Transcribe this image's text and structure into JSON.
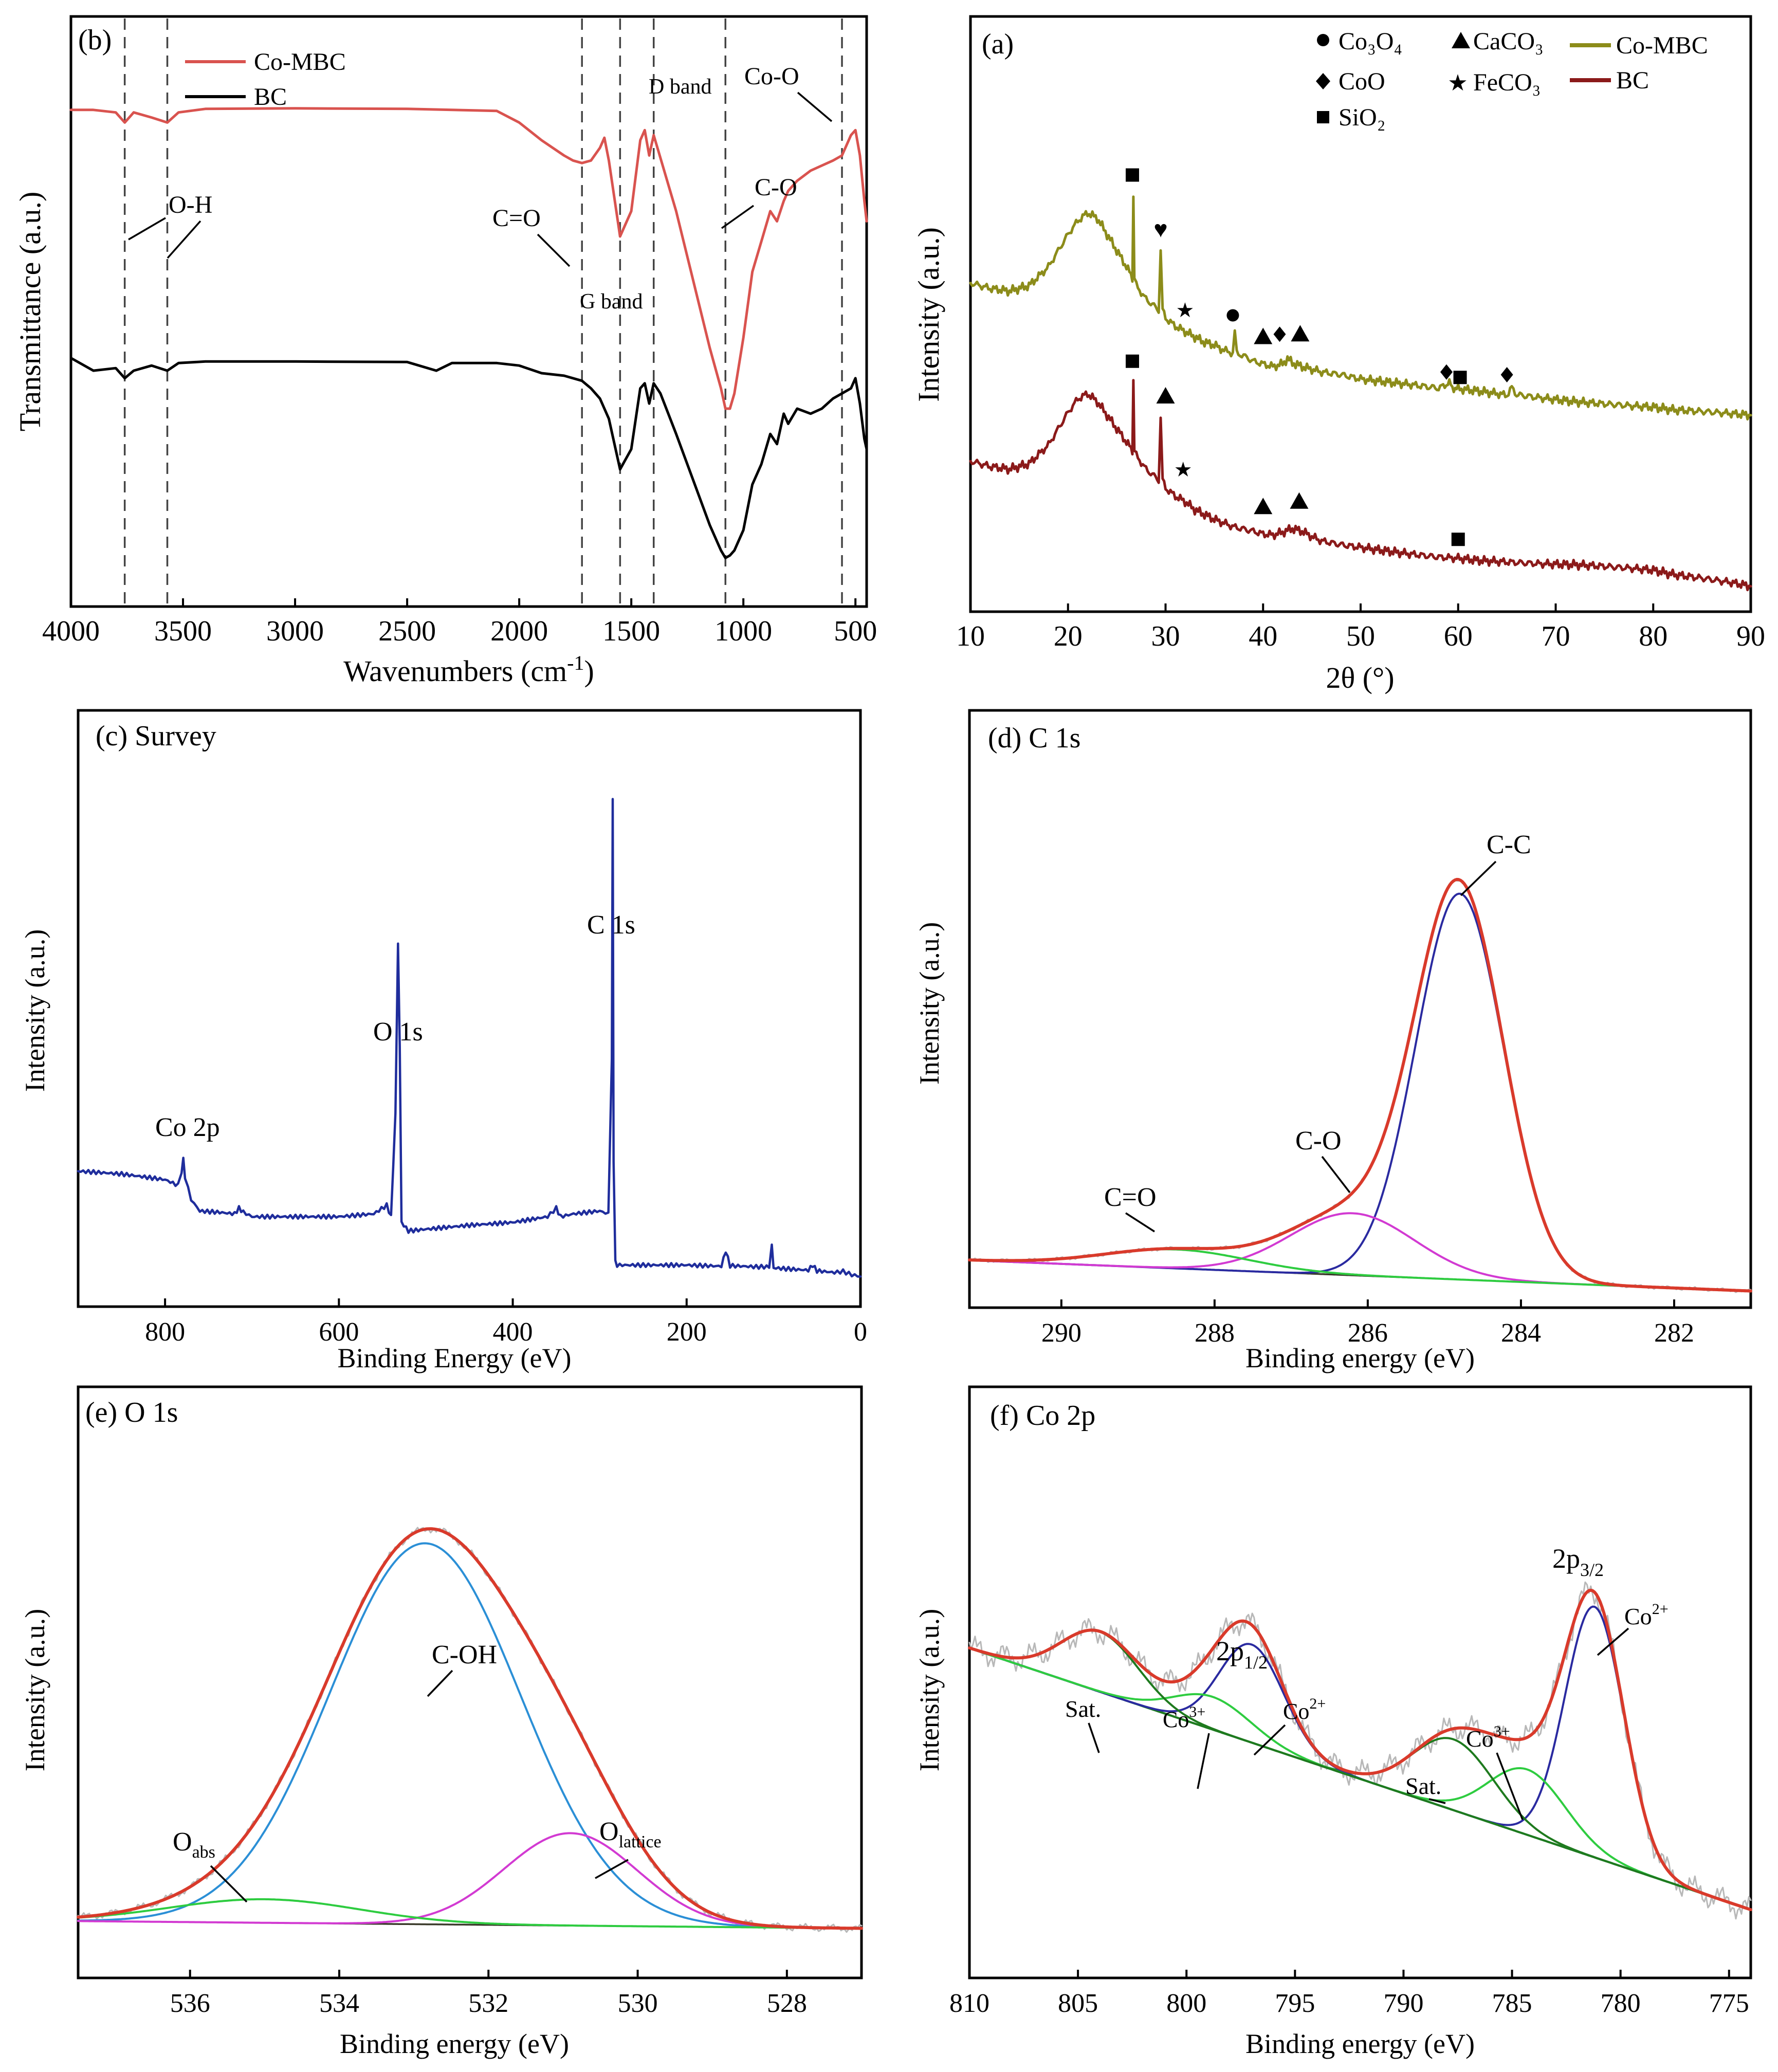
{
  "figure": {
    "description": "Six-panel characterization figure: FTIR (b), XRD (a), XPS survey (c), C 1s (d), O 1s (e), Co 2p (f)"
  },
  "colors": {
    "ftir_co_mbc": "#d9534f",
    "ftir_bc": "#000000",
    "xrd_co_mbc": "#8c8c1a",
    "xrd_bc": "#8b1a1a",
    "survey": "#1f2d9c",
    "envelope": "#d93a2b",
    "raw": "#b8b8b8",
    "background": "#3a3a2a",
    "peak_blue": "#2a2aa0",
    "peak_magenta": "#d23ad2",
    "peak_green": "#2ecc40",
    "peak_cyan": "#2b8fd6",
    "peak_darkgreen": "#1e7a1e"
  },
  "chart_data": [
    {
      "id": "ftir",
      "type": "line",
      "panel_label": "(b)",
      "xlabel": "Wavenumbers (cm",
      "xlabel_sup": "-1",
      "xlabel_tail": ")",
      "ylabel": "Transmittance (a.u.)",
      "xlim": [
        4000,
        450
      ],
      "ylim": [
        0,
        100
      ],
      "xticks": [
        4000,
        3500,
        3000,
        2500,
        2000,
        1500,
        1000,
        500
      ],
      "xtick_labels": [
        "4000",
        "3500",
        "3000",
        "2500",
        "2000",
        "1500",
        "1000",
        "500"
      ],
      "legend": [
        "Co-MBC",
        "BC"
      ],
      "vlines": [
        3760,
        3570,
        1720,
        1550,
        1400,
        1080,
        560
      ],
      "annotations": [
        "O-H",
        "C=O",
        "G band",
        "D band",
        "C-O",
        "Co-O"
      ],
      "series": [
        {
          "name": "Co-MBC",
          "x": [
            4000,
            3900,
            3800,
            3760,
            3720,
            3640,
            3570,
            3520,
            3400,
            3000,
            2500,
            2100,
            2000,
            1900,
            1800,
            1760,
            1720,
            1680,
            1640,
            1620,
            1600,
            1550,
            1500,
            1460,
            1440,
            1420,
            1400,
            1380,
            1300,
            1200,
            1150,
            1100,
            1080,
            1060,
            1040,
            1000,
            960,
            920,
            880,
            850,
            820,
            800,
            760,
            700,
            650,
            600,
            560,
            520,
            500,
            480,
            460,
            450
          ],
          "y": [
            92,
            92,
            91.5,
            89.5,
            91.5,
            90.5,
            89.5,
            91.5,
            92.2,
            92.3,
            92.2,
            91.8,
            89.5,
            86,
            83,
            82,
            81.5,
            82,
            84.5,
            86.5,
            82,
            67,
            72,
            86,
            88,
            83,
            87,
            84,
            72,
            54,
            45,
            37,
            33,
            33,
            36,
            47,
            60,
            66,
            72,
            70,
            74,
            76,
            78,
            80,
            81,
            82,
            83,
            87,
            88,
            83,
            74,
            70
          ]
        },
        {
          "name": "BC",
          "x": [
            4000,
            3900,
            3800,
            3760,
            3720,
            3640,
            3570,
            3520,
            3400,
            3000,
            2500,
            2370,
            2300,
            2100,
            2000,
            1900,
            1800,
            1720,
            1680,
            1640,
            1600,
            1550,
            1500,
            1460,
            1440,
            1420,
            1400,
            1370,
            1300,
            1200,
            1150,
            1100,
            1080,
            1060,
            1040,
            1000,
            960,
            920,
            880,
            850,
            820,
            800,
            760,
            700,
            650,
            600,
            560,
            520,
            500,
            480,
            460,
            450
          ],
          "y": [
            43,
            40.5,
            41,
            39,
            40.5,
            41.5,
            40.5,
            42,
            42.3,
            42.3,
            42.2,
            40.5,
            42,
            42,
            41.5,
            40,
            39.5,
            38.5,
            37,
            35,
            31,
            21,
            25,
            37,
            38,
            34,
            38,
            36,
            28,
            16,
            10,
            5,
            3.5,
            4,
            5,
            9,
            18,
            22,
            28,
            26,
            32,
            30,
            33,
            32,
            33,
            35,
            36,
            37,
            39,
            34,
            27,
            25
          ]
        }
      ]
    },
    {
      "id": "xrd",
      "type": "line",
      "panel_label": "(a)",
      "xlabel": "2θ (°)",
      "ylabel": "Intensity (a.u.)",
      "xlim": [
        10,
        90
      ],
      "ylim": [
        0,
        100
      ],
      "xticks": [
        10,
        20,
        30,
        40,
        50,
        60,
        70,
        80,
        90
      ],
      "xtick_labels": [
        "10",
        "20",
        "30",
        "40",
        "50",
        "60",
        "70",
        "80",
        "90"
      ],
      "legend": [
        "Co-MBC",
        "BC"
      ],
      "phase_legend": [
        "Co₃O₄",
        "CaCO₃",
        "CoO",
        "FeCO₃",
        "SiO₂"
      ],
      "series": [
        {
          "name": "Co-MBC",
          "x": [
            10,
            12,
            14,
            16,
            18,
            20,
            21,
            22,
            23,
            24,
            25,
            26,
            26.6,
            26.7,
            26.8,
            27,
            28,
            29.3,
            29.5,
            29.7,
            30,
            31,
            32,
            33,
            34,
            35,
            36,
            36.9,
            37.1,
            37.3,
            38,
            39,
            40,
            41,
            42,
            42.5,
            43,
            44,
            45,
            46,
            48,
            50,
            52,
            55,
            58,
            59.1,
            59.4,
            60,
            62,
            64,
            65,
            65.5,
            66,
            68,
            70,
            72,
            75,
            78,
            80,
            82,
            85,
            88,
            90
          ],
          "y": [
            59,
            58,
            57.5,
            58.5,
            62,
            68,
            70.5,
            72,
            71,
            68,
            65,
            62,
            60,
            75,
            60,
            58.5,
            56,
            54,
            65,
            54,
            52.5,
            51,
            50,
            49,
            48,
            47.5,
            46.5,
            46,
            50,
            46,
            45.5,
            44.5,
            44,
            43.5,
            44,
            45,
            44.2,
            43.5,
            43,
            42.5,
            42,
            41.2,
            40.8,
            40.2,
            39.5,
            40.5,
            39.6,
            39.4,
            39,
            38.5,
            38.2,
            39.6,
            38.3,
            37.8,
            37.4,
            37,
            36.6,
            36.2,
            36,
            35.5,
            35.2,
            34.8,
            34.5
          ]
        },
        {
          "name": "BC",
          "x": [
            10,
            12,
            14,
            16,
            18,
            20,
            21,
            22,
            23,
            24,
            25,
            26,
            26.6,
            26.7,
            26.8,
            27,
            28,
            29.3,
            29.5,
            29.7,
            30,
            31,
            32,
            33,
            35,
            37,
            39,
            40,
            41,
            42,
            43,
            44,
            45,
            46,
            48,
            50,
            52,
            55,
            58,
            60,
            62,
            65,
            68,
            70,
            72,
            75,
            78,
            80,
            82,
            85,
            88,
            90
          ],
          "y": [
            26,
            25,
            24.5,
            25.5,
            29,
            35,
            37.5,
            38.5,
            37,
            34.5,
            32,
            29.5,
            28,
            41,
            28,
            27,
            24.5,
            22.5,
            34,
            22.5,
            21,
            19.5,
            18.5,
            17,
            15.2,
            13.8,
            13,
            12.5,
            12.3,
            12.8,
            13.5,
            13,
            12,
            11.2,
            10.5,
            10,
            9.5,
            8.8,
            8.2,
            8,
            7.6,
            7.3,
            7,
            6.9,
            6.8,
            6.5,
            6.1,
            5.8,
            5,
            4.3,
            3.5,
            2.8
          ]
        }
      ],
      "markers": [
        {
          "x": 26.6,
          "y": 79,
          "symbol": "square"
        },
        {
          "x": 29.5,
          "y": 69,
          "symbol": "heart"
        },
        {
          "x": 32,
          "y": 54,
          "symbol": "star"
        },
        {
          "x": 36.9,
          "y": 53,
          "symbol": "circle"
        },
        {
          "x": 40,
          "y": 49,
          "symbol": "triangle"
        },
        {
          "x": 41.7,
          "y": 49.5,
          "symbol": "diamond"
        },
        {
          "x": 43.8,
          "y": 49.5,
          "symbol": "triangle"
        },
        {
          "x": 58.8,
          "y": 42.5,
          "symbol": "diamond"
        },
        {
          "x": 60.2,
          "y": 41.5,
          "symbol": "square"
        },
        {
          "x": 65,
          "y": 42,
          "symbol": "diamond"
        },
        {
          "x": 26.6,
          "y": 44.5,
          "symbol": "square"
        },
        {
          "x": 30,
          "y": 38,
          "symbol": "triangle"
        },
        {
          "x": 31.8,
          "y": 24.5,
          "symbol": "star"
        },
        {
          "x": 40,
          "y": 17.5,
          "symbol": "triangle"
        },
        {
          "x": 43.7,
          "y": 18.5,
          "symbol": "triangle"
        },
        {
          "x": 60,
          "y": 11.5,
          "symbol": "square"
        }
      ]
    },
    {
      "id": "survey",
      "type": "line",
      "panel_label": "(c) Survey",
      "xlabel": "Binding Energy (eV)",
      "ylabel": "Intensity (a.u.)",
      "xlim": [
        900,
        0
      ],
      "ylim": [
        0,
        100
      ],
      "xticks": [
        800,
        600,
        400,
        200,
        0
      ],
      "xtick_labels": [
        "800",
        "600",
        "400",
        "200",
        "0"
      ],
      "annotations": [
        "Co 2p",
        "O 1s",
        "C 1s"
      ],
      "series": [
        {
          "name": "Survey",
          "x": [
            900,
            850,
            800,
            785,
            781,
            779,
            777,
            770,
            760,
            740,
            720,
            715,
            710,
            700,
            650,
            600,
            560,
            545,
            540,
            535,
            532,
            530,
            528,
            520,
            500,
            450,
            400,
            380,
            360,
            350,
            345,
            330,
            300,
            290,
            286,
            285,
            284,
            282,
            280,
            250,
            200,
            160,
            155,
            150,
            120,
            105,
            102,
            100,
            80,
            60,
            55,
            50,
            30,
            20,
            10,
            0
          ],
          "y": [
            20,
            19.5,
            18.5,
            17.5,
            20,
            22,
            19,
            15,
            13,
            12.8,
            12.5,
            13.5,
            12.8,
            12,
            12,
            12,
            12.5,
            14,
            12,
            30,
            60,
            42,
            11,
            9.5,
            9.8,
            10.5,
            11,
            11.5,
            12,
            13.5,
            12,
            12.5,
            13,
            12.5,
            40,
            85,
            22,
            4,
            3.5,
            3.5,
            3.5,
            3.3,
            6,
            3.4,
            3.2,
            3.2,
            7,
            3,
            2.8,
            2.6,
            3.5,
            2.5,
            2.2,
            2.4,
            1.8,
            1.5
          ]
        }
      ]
    },
    {
      "id": "c1s",
      "type": "line",
      "panel_label": "(d) C 1s",
      "xlabel": "Binding energy (eV)",
      "ylabel": "Intensity (a.u.)",
      "xlim": [
        291.2,
        281
      ],
      "ylim": [
        0,
        100
      ],
      "xticks": [
        290,
        288,
        286,
        284,
        282
      ],
      "xtick_labels": [
        "290",
        "288",
        "286",
        "284",
        "282"
      ],
      "background": {
        "start": [
          291.2,
          6.5
        ],
        "end": [
          281,
          0.8
        ]
      },
      "components": [
        {
          "name": "C-C",
          "center": 284.8,
          "height": 71.5,
          "fwhm": 1.35,
          "color": "peak_blue"
        },
        {
          "name": "C-O",
          "center": 286.2,
          "height": 11.5,
          "fwhm": 1.9,
          "color": "peak_magenta"
        },
        {
          "name": "C=O",
          "center": 288.5,
          "height": 3.5,
          "fwhm": 2.2,
          "color": "peak_green"
        }
      ],
      "annotations": [
        "C-C",
        "C-O",
        "C=O"
      ]
    },
    {
      "id": "o1s",
      "type": "line",
      "panel_label": "(e) O 1s",
      "xlabel": "Binding energy (eV)",
      "ylabel": "Intensity (a.u.)",
      "xlim": [
        537.5,
        527
      ],
      "ylim": [
        0,
        100
      ],
      "xticks": [
        536,
        534,
        532,
        530,
        528
      ],
      "xtick_labels": [
        "536",
        "534",
        "532",
        "530",
        "528"
      ],
      "background": {
        "start": [
          537.5,
          8.5
        ],
        "end": [
          527,
          7.2
        ]
      },
      "components": [
        {
          "name": "C-OH",
          "center": 532.85,
          "height": 68,
          "fwhm": 3.0,
          "color": "peak_cyan"
        },
        {
          "name": "O_lattice",
          "center": 530.9,
          "height": 16.5,
          "fwhm": 2.1,
          "color": "peak_magenta"
        },
        {
          "name": "O_abs",
          "center": 535,
          "height": 4.2,
          "fwhm": 3.0,
          "color": "peak_green"
        }
      ],
      "annotations": [
        "C-OH",
        "O",
        "abs",
        "O",
        "lattice"
      ]
    },
    {
      "id": "co2p",
      "type": "line",
      "panel_label": "(f) Co 2p",
      "xlabel": "Binding energy (eV)",
      "ylabel": "Intensity (a.u.)",
      "xlim": [
        810,
        774
      ],
      "ylim": [
        0,
        100
      ],
      "xticks": [
        810,
        805,
        800,
        795,
        790,
        785,
        780,
        775
      ],
      "xtick_labels": [
        "810",
        "805",
        "800",
        "795",
        "790",
        "785",
        "780",
        "775"
      ],
      "background": {
        "start": [
          810,
          56
        ],
        "end": [
          774,
          8
        ]
      },
      "components": [
        {
          "name": "Co2+ (2p3/2)",
          "center": 781.2,
          "height": 46,
          "fwhm": 3.2,
          "color": "peak_blue"
        },
        {
          "name": "Co3+ (2p3/2)",
          "center": 784.3,
          "height": 12,
          "fwhm": 4.2,
          "color": "peak_green"
        },
        {
          "name": "Sat. (2p3/2)",
          "center": 787.7,
          "height": 13,
          "fwhm": 4.4,
          "color": "peak_darkgreen"
        },
        {
          "name": "Co2+ (2p1/2)",
          "center": 797.0,
          "height": 18,
          "fwhm": 3.5,
          "color": "peak_blue"
        },
        {
          "name": "Co3+ (2p1/2)",
          "center": 798.8,
          "height": 6,
          "fwhm": 4.2,
          "color": "peak_green"
        },
        {
          "name": "Sat. (2p1/2)",
          "center": 804.0,
          "height": 11,
          "fwhm": 4.2,
          "color": "peak_darkgreen"
        }
      ],
      "annotations": [
        "2p",
        "3/2",
        "2p",
        "1/2",
        "Co",
        "2+",
        "Co",
        "3+",
        "Sat.",
        "Co",
        "3+",
        "Co",
        "2+",
        "Sat."
      ]
    }
  ]
}
